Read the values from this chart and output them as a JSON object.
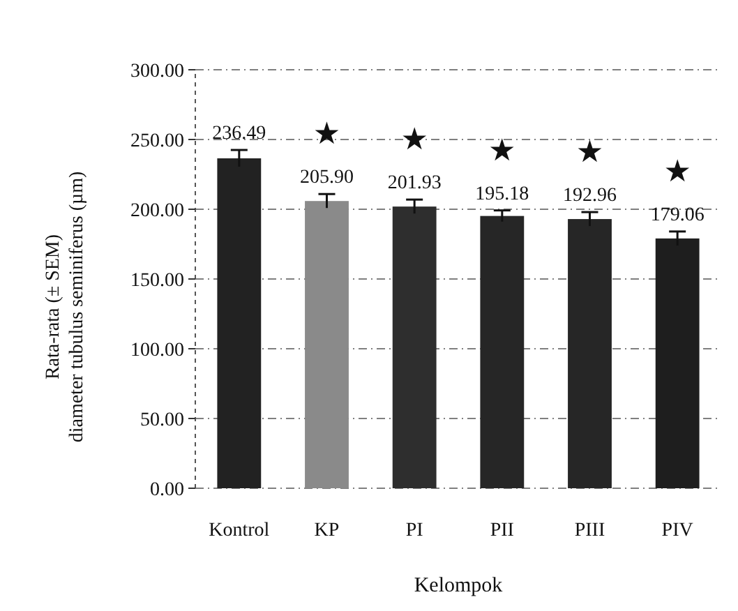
{
  "chart_data": {
    "type": "bar",
    "xlabel": "Kelompok",
    "ylabel": "Rata-rata (± SEM) diameter tubulus seminiferus (µm)",
    "categories": [
      "Kontrol",
      "KP",
      "PI",
      "PII",
      "PIII",
      "PIV"
    ],
    "values": [
      236.49,
      205.9,
      201.93,
      195.18,
      192.96,
      179.06
    ],
    "value_labels": [
      "236.49",
      "205.90",
      "201.93",
      "195.18",
      "192.96",
      "179.06"
    ],
    "errors": [
      6,
      5,
      5,
      4,
      5,
      5
    ],
    "colors": [
      "#222222",
      "#8a8a8a",
      "#2e2e2e",
      "#262626",
      "#262626",
      "#1e1e1e"
    ],
    "ylim": [
      0,
      300
    ],
    "yticks": [
      {
        "value": 0,
        "label": "0.00"
      },
      {
        "value": 50,
        "label": "50.00"
      },
      {
        "value": 100,
        "label": "100.00"
      },
      {
        "value": 150,
        "label": "150.00"
      },
      {
        "value": 200,
        "label": "200.00"
      },
      {
        "value": 250,
        "label": "250.00"
      },
      {
        "value": 300,
        "label": "300.00"
      }
    ],
    "grid": "y",
    "annotations": [
      "★",
      "★",
      "★",
      "★",
      "★"
    ]
  }
}
